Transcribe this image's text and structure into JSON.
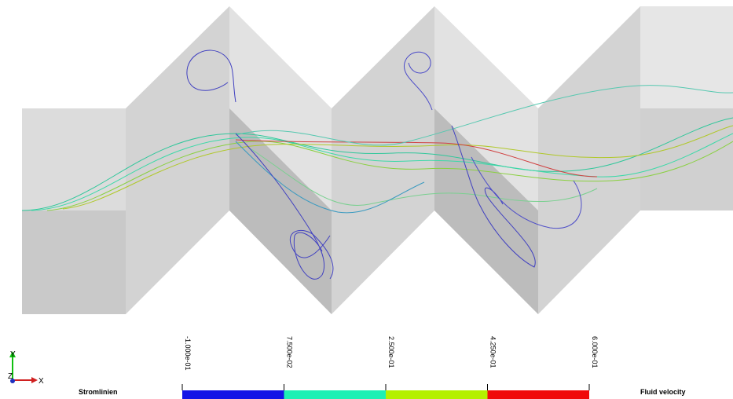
{
  "triad": {
    "y": "Y",
    "z": "Z",
    "x": "X"
  },
  "streamlines_label": "Stromlinien",
  "legend": {
    "title": "Fluid velocity",
    "range": [
      -0.1,
      0.6
    ],
    "ticks": [
      {
        "value": -0.1,
        "label": "-1.000e-01"
      },
      {
        "value": 0.075,
        "label": "7.500e-02"
      },
      {
        "value": 0.25,
        "label": "2.500e-01"
      },
      {
        "value": 0.425,
        "label": "4.250e-01"
      },
      {
        "value": 0.6,
        "label": "6.000e-01"
      }
    ],
    "colors": [
      "#1414e6",
      "#1ef0b4",
      "#b4f000",
      "#f00a0a"
    ]
  }
}
